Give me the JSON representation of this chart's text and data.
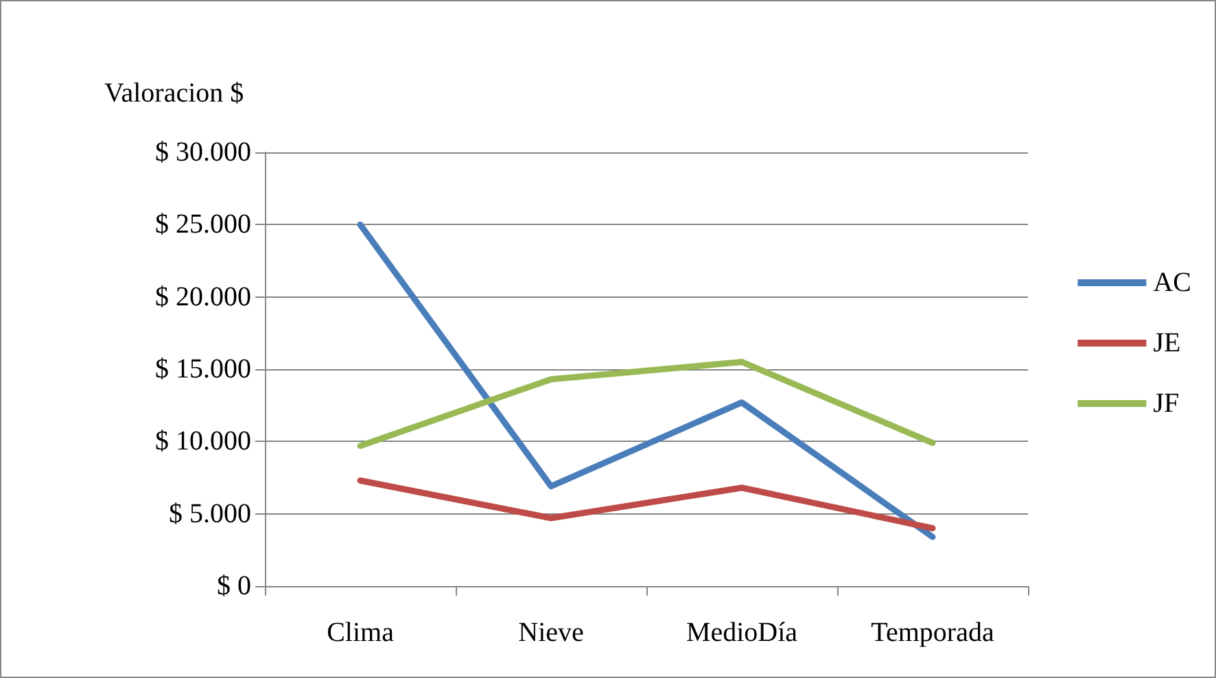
{
  "chart_data": {
    "type": "line",
    "ylabel": "Valoracion $",
    "categories": [
      "Clima",
      "Nieve",
      "MedioDía",
      "Temporada"
    ],
    "series": [
      {
        "name": "AC",
        "color": "#4a7ebb",
        "values": [
          25000,
          6900,
          12700,
          3400
        ]
      },
      {
        "name": "JE",
        "color": "#be4b48",
        "values": [
          7300,
          4700,
          6800,
          4000
        ]
      },
      {
        "name": "JF",
        "color": "#98b954",
        "values": [
          9700,
          14300,
          15500,
          9900
        ]
      }
    ],
    "ylim": [
      0,
      30000
    ],
    "yticks": [
      {
        "value": 0,
        "label": "$ 0"
      },
      {
        "value": 5000,
        "label": "$ 5.000"
      },
      {
        "value": 10000,
        "label": "$ 10.000"
      },
      {
        "value": 15000,
        "label": "$ 15.000"
      },
      {
        "value": 20000,
        "label": "$ 20.000"
      },
      {
        "value": 25000,
        "label": "$ 25.000"
      },
      {
        "value": 30000,
        "label": "$ 30.000"
      }
    ],
    "grid": "y",
    "legend": "right",
    "marker": "none",
    "line_style": "solid"
  }
}
